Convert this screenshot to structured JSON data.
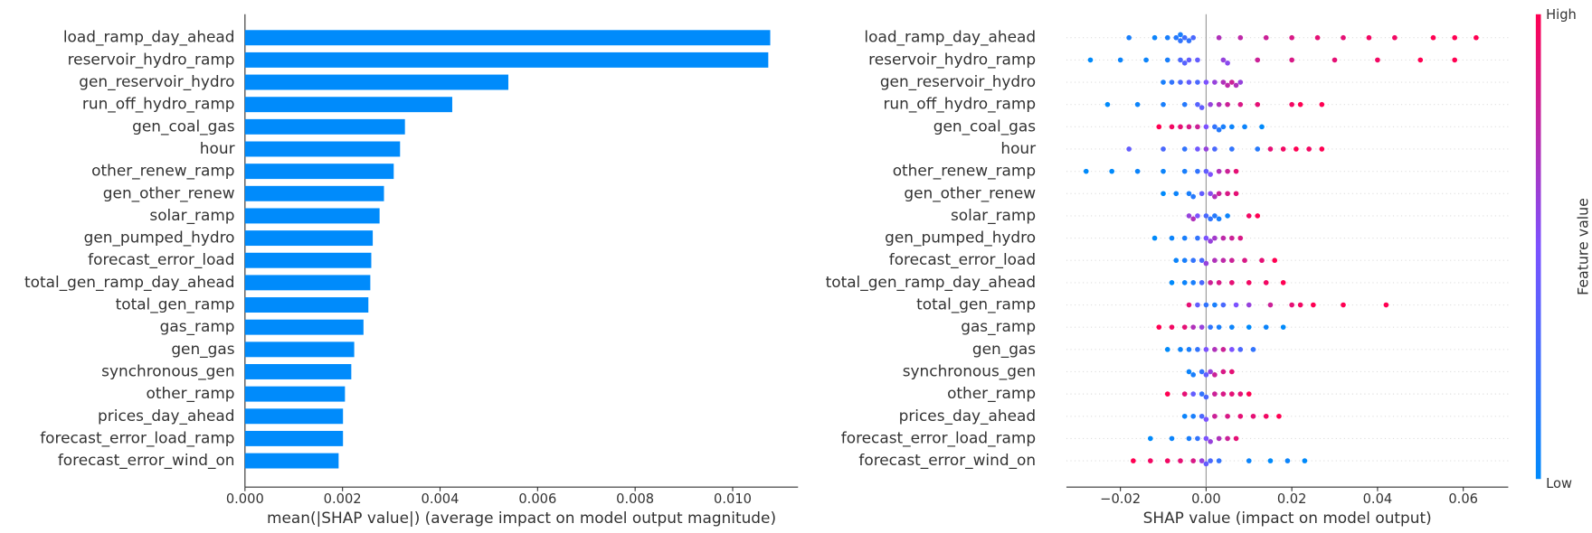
{
  "chart_data": [
    {
      "type": "hbar",
      "x_label": "mean(|SHAP value|) (average impact on model output magnitude)",
      "categories": [
        "load_ramp_day_ahead",
        "reservoir_hydro_ramp",
        "gen_reservoir_hydro",
        "run_off_hydro_ramp",
        "gen_coal_gas",
        "hour",
        "other_renew_ramp",
        "gen_other_renew",
        "solar_ramp",
        "gen_pumped_hydro",
        "forecast_error_load",
        "total_gen_ramp_day_ahead",
        "total_gen_ramp",
        "gas_ramp",
        "gen_gas",
        "synchronous_gen",
        "other_ramp",
        "prices_day_ahead",
        "forecast_error_load_ramp",
        "forecast_error_wind_on"
      ],
      "values": [
        0.01077,
        0.01073,
        0.0054,
        0.00425,
        0.00328,
        0.00318,
        0.00305,
        0.00285,
        0.00276,
        0.00262,
        0.00259,
        0.00257,
        0.00253,
        0.00243,
        0.00224,
        0.00218,
        0.00205,
        0.00201,
        0.00201,
        0.00192
      ],
      "color": "#008bfb",
      "xlim": [
        0,
        0.01134
      ],
      "xticks": [
        {
          "value": 0,
          "label": "0.000"
        },
        {
          "value": 0.002,
          "label": "0.002"
        },
        {
          "value": 0.004,
          "label": "0.004"
        },
        {
          "value": 0.006,
          "label": "0.006"
        },
        {
          "value": 0.008,
          "label": "0.008"
        },
        {
          "value": 0.01,
          "label": "0.010"
        }
      ]
    },
    {
      "type": "beeswarm",
      "x_label": "SHAP value (impact on model output)",
      "categories": [
        "load_ramp_day_ahead",
        "reservoir_hydro_ramp",
        "gen_reservoir_hydro",
        "run_off_hydro_ramp",
        "gen_coal_gas",
        "hour",
        "other_renew_ramp",
        "gen_other_renew",
        "solar_ramp",
        "gen_pumped_hydro",
        "forecast_error_load",
        "total_gen_ramp_day_ahead",
        "total_gen_ramp",
        "gas_ramp",
        "gen_gas",
        "synchronous_gen",
        "other_ramp",
        "prices_day_ahead",
        "forecast_error_load_ramp",
        "forecast_error_wind_on"
      ],
      "values": [
        [
          -0.018,
          -0.012,
          -0.009,
          -0.007,
          -0.006,
          -0.006,
          -0.005,
          -0.004,
          -0.003,
          0.003,
          0.008,
          0.014,
          0.02,
          0.026,
          0.032,
          0.038,
          0.044,
          0.053,
          0.058,
          0.063
        ],
        [
          -0.027,
          -0.02,
          -0.014,
          -0.009,
          -0.006,
          -0.005,
          -0.004,
          -0.002,
          0.004,
          0.005,
          0.012,
          0.02,
          0.03,
          0.04,
          0.05,
          0.058
        ],
        [
          -0.01,
          -0.008,
          -0.006,
          -0.004,
          -0.002,
          0,
          0.002,
          0.004,
          0.005,
          0.006,
          0.007,
          0.008
        ],
        [
          -0.023,
          -0.016,
          -0.01,
          -0.005,
          -0.002,
          -0.001,
          0.001,
          0.003,
          0.005,
          0.008,
          0.012,
          0.02,
          0.022,
          0.027
        ],
        [
          -0.011,
          -0.008,
          -0.006,
          -0.004,
          -0.002,
          0,
          0.002,
          0.003,
          0.004,
          0.006,
          0.009,
          0.013
        ],
        [
          -0.018,
          -0.01,
          -0.005,
          -0.002,
          0,
          0.002,
          0.006,
          0.012,
          0.015,
          0.018,
          0.021,
          0.024,
          0.027
        ],
        [
          -0.028,
          -0.022,
          -0.016,
          -0.01,
          -0.005,
          -0.002,
          0,
          0.001,
          0.003,
          0.005,
          0.007
        ],
        [
          -0.01,
          -0.007,
          -0.004,
          -0.003,
          -0.001,
          0.001,
          0.002,
          0.003,
          0.005,
          0.007
        ],
        [
          -0.004,
          -0.003,
          -0.002,
          0,
          0.001,
          0.002,
          0.003,
          0.005,
          0.01,
          0.012
        ],
        [
          -0.012,
          -0.008,
          -0.005,
          -0.002,
          0,
          0.001,
          0.002,
          0.004,
          0.006,
          0.008
        ],
        [
          -0.007,
          -0.005,
          -0.003,
          -0.001,
          0,
          0.002,
          0.004,
          0.006,
          0.009,
          0.013,
          0.016
        ],
        [
          -0.008,
          -0.005,
          -0.003,
          -0.001,
          0.001,
          0.003,
          0.006,
          0.01,
          0.014,
          0.018
        ],
        [
          -0.004,
          -0.002,
          0,
          0.002,
          0.004,
          0.007,
          0.01,
          0.015,
          0.02,
          0.022,
          0.025,
          0.032,
          0.042
        ],
        [
          -0.011,
          -0.008,
          -0.005,
          -0.003,
          -0.001,
          0.001,
          0.003,
          0.006,
          0.01,
          0.014,
          0.018
        ],
        [
          -0.009,
          -0.006,
          -0.004,
          -0.002,
          0,
          0.002,
          0.004,
          0.006,
          0.008,
          0.011
        ],
        [
          -0.004,
          -0.003,
          -0.001,
          0,
          0.001,
          0.002,
          0.004,
          0.006
        ],
        [
          -0.009,
          -0.005,
          -0.003,
          -0.001,
          0,
          0.002,
          0.004,
          0.006,
          0.008,
          0.01
        ],
        [
          -0.005,
          -0.003,
          -0.001,
          0,
          0.002,
          0.005,
          0.008,
          0.011,
          0.014,
          0.017
        ],
        [
          -0.013,
          -0.008,
          -0.004,
          -0.002,
          0,
          0.001,
          0.003,
          0.005,
          0.007
        ],
        [
          -0.017,
          -0.013,
          -0.009,
          -0.006,
          -0.003,
          -0.001,
          0,
          0.001,
          0.003,
          0.01,
          0.015,
          0.019,
          0.023
        ]
      ],
      "feature_values": [
        [
          0.1,
          0.05,
          0.1,
          0.15,
          0.2,
          0.1,
          0.25,
          0.2,
          0.3,
          0.7,
          0.75,
          0.8,
          0.85,
          0.9,
          0.9,
          0.95,
          0.95,
          1,
          1,
          1
        ],
        [
          0,
          0.05,
          0.05,
          0.1,
          0.3,
          0.35,
          0.4,
          0.4,
          0.6,
          0.55,
          0.8,
          0.85,
          0.9,
          0.95,
          1,
          1
        ],
        [
          0.1,
          0.2,
          0.3,
          0.4,
          0.3,
          0.5,
          0.6,
          0.7,
          0.75,
          0.8,
          0.7,
          0.6
        ],
        [
          0,
          0.05,
          0.1,
          0.15,
          0.35,
          0.4,
          0.6,
          0.7,
          0.8,
          0.85,
          0.9,
          0.95,
          1,
          1
        ],
        [
          1,
          0.95,
          0.9,
          0.85,
          0.8,
          0.5,
          0.2,
          0.15,
          0.1,
          0.05,
          0.05,
          0
        ],
        [
          0.4,
          0.3,
          0.2,
          0.45,
          0.6,
          0.3,
          0.2,
          0.15,
          0.9,
          0.95,
          1,
          0.95,
          1
        ],
        [
          0,
          0,
          0.05,
          0.05,
          0.1,
          0.2,
          0.4,
          0.5,
          0.7,
          0.8,
          0.9
        ],
        [
          0,
          0.05,
          0.1,
          0.15,
          0.4,
          0.55,
          0.7,
          0.8,
          0.85,
          0.9
        ],
        [
          0.6,
          0.7,
          0.5,
          0.3,
          0.2,
          0.15,
          0.1,
          0.05,
          0.95,
          1
        ],
        [
          0,
          0.05,
          0.1,
          0.2,
          0.5,
          0.6,
          0.65,
          0.75,
          0.8,
          0.85
        ],
        [
          0.05,
          0.1,
          0.2,
          0.3,
          0.6,
          0.7,
          0.75,
          0.8,
          0.85,
          0.9,
          1
        ],
        [
          0,
          0.05,
          0.1,
          0.3,
          0.8,
          0.85,
          0.9,
          0.95,
          0.95,
          1
        ],
        [
          0.9,
          0.4,
          0.2,
          0.1,
          0.3,
          0.5,
          0.6,
          0.8,
          0.9,
          0.95,
          1,
          1,
          1
        ],
        [
          1,
          0.95,
          0.9,
          0.7,
          0.6,
          0.2,
          0.1,
          0.05,
          0,
          0.05,
          0
        ],
        [
          0,
          0.05,
          0.1,
          0.2,
          0.5,
          0.7,
          0.8,
          0.5,
          0.3,
          0.2
        ],
        [
          0.05,
          0.1,
          0.2,
          0.4,
          0.6,
          0.8,
          0.85,
          0.9
        ],
        [
          1,
          0.9,
          0.4,
          0.2,
          0.3,
          0.8,
          0.85,
          0.9,
          0.9,
          1
        ],
        [
          0.05,
          0.1,
          0.3,
          0.5,
          0.8,
          0.85,
          0.9,
          0.9,
          0.95,
          1
        ],
        [
          0,
          0.05,
          0.1,
          0.2,
          0.5,
          0.6,
          0.7,
          0.8,
          0.9
        ],
        [
          1,
          0.95,
          0.95,
          0.9,
          0.85,
          0.6,
          0.4,
          0.3,
          0.2,
          0.05,
          0,
          0.05,
          0
        ]
      ],
      "colormap": [
        "#008afb",
        "#7c52ff",
        "#ff0052"
      ],
      "xlim": [
        -0.0326,
        0.0705
      ],
      "xticks": [
        {
          "value": -0.02,
          "label": "−0.02"
        },
        {
          "value": 0,
          "label": "0.00"
        },
        {
          "value": 0.02,
          "label": "0.02"
        },
        {
          "value": 0.04,
          "label": "0.04"
        },
        {
          "value": 0.06,
          "label": "0.06"
        }
      ],
      "colorbar": {
        "label": "Feature value",
        "high": "High",
        "low": "Low"
      }
    }
  ]
}
